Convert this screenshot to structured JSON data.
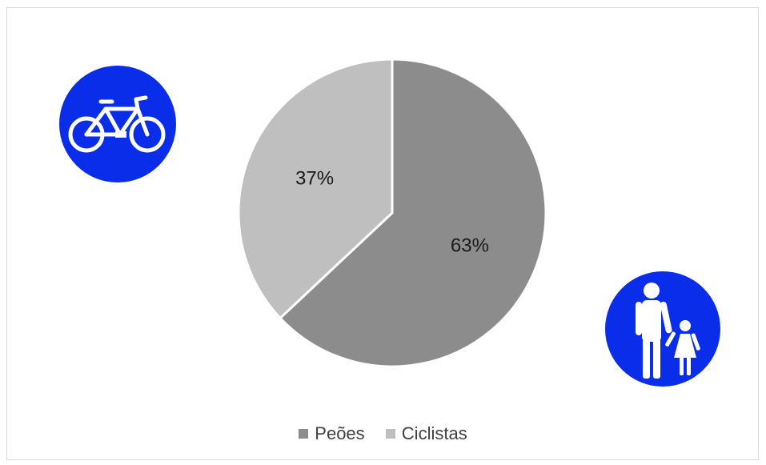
{
  "chart_data": {
    "type": "pie",
    "categories": [
      "Peões",
      "Ciclistas"
    ],
    "values": [
      63,
      37
    ],
    "labels": [
      "63%",
      "37%"
    ],
    "colors": [
      "#8c8c8c",
      "#bfbfbf"
    ],
    "legend_position": "bottom",
    "start": "top, clockwise"
  },
  "icons": {
    "bicycle_sign": "bicycle-sign-icon",
    "pedestrian_sign": "pedestrian-sign-icon"
  }
}
